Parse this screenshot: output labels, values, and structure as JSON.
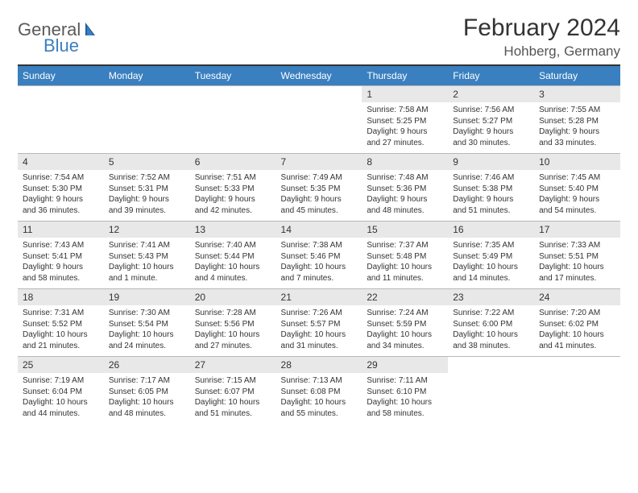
{
  "logo": {
    "word1": "General",
    "word2": "Blue",
    "icon_color": "#1f5f9f"
  },
  "title": "February 2024",
  "location": "Hohberg, Germany",
  "header_bg": "#3a7fbf",
  "daynum_bg": "#e8e8e8",
  "rule_color": "#333333",
  "weekdays": [
    "Sunday",
    "Monday",
    "Tuesday",
    "Wednesday",
    "Thursday",
    "Friday",
    "Saturday"
  ],
  "weeks": [
    [
      {
        "empty": true
      },
      {
        "empty": true
      },
      {
        "empty": true
      },
      {
        "empty": true
      },
      {
        "n": "1",
        "sr": "Sunrise: 7:58 AM",
        "ss": "Sunset: 5:25 PM",
        "d1": "Daylight: 9 hours",
        "d2": "and 27 minutes."
      },
      {
        "n": "2",
        "sr": "Sunrise: 7:56 AM",
        "ss": "Sunset: 5:27 PM",
        "d1": "Daylight: 9 hours",
        "d2": "and 30 minutes."
      },
      {
        "n": "3",
        "sr": "Sunrise: 7:55 AM",
        "ss": "Sunset: 5:28 PM",
        "d1": "Daylight: 9 hours",
        "d2": "and 33 minutes."
      }
    ],
    [
      {
        "n": "4",
        "sr": "Sunrise: 7:54 AM",
        "ss": "Sunset: 5:30 PM",
        "d1": "Daylight: 9 hours",
        "d2": "and 36 minutes."
      },
      {
        "n": "5",
        "sr": "Sunrise: 7:52 AM",
        "ss": "Sunset: 5:31 PM",
        "d1": "Daylight: 9 hours",
        "d2": "and 39 minutes."
      },
      {
        "n": "6",
        "sr": "Sunrise: 7:51 AM",
        "ss": "Sunset: 5:33 PM",
        "d1": "Daylight: 9 hours",
        "d2": "and 42 minutes."
      },
      {
        "n": "7",
        "sr": "Sunrise: 7:49 AM",
        "ss": "Sunset: 5:35 PM",
        "d1": "Daylight: 9 hours",
        "d2": "and 45 minutes."
      },
      {
        "n": "8",
        "sr": "Sunrise: 7:48 AM",
        "ss": "Sunset: 5:36 PM",
        "d1": "Daylight: 9 hours",
        "d2": "and 48 minutes."
      },
      {
        "n": "9",
        "sr": "Sunrise: 7:46 AM",
        "ss": "Sunset: 5:38 PM",
        "d1": "Daylight: 9 hours",
        "d2": "and 51 minutes."
      },
      {
        "n": "10",
        "sr": "Sunrise: 7:45 AM",
        "ss": "Sunset: 5:40 PM",
        "d1": "Daylight: 9 hours",
        "d2": "and 54 minutes."
      }
    ],
    [
      {
        "n": "11",
        "sr": "Sunrise: 7:43 AM",
        "ss": "Sunset: 5:41 PM",
        "d1": "Daylight: 9 hours",
        "d2": "and 58 minutes."
      },
      {
        "n": "12",
        "sr": "Sunrise: 7:41 AM",
        "ss": "Sunset: 5:43 PM",
        "d1": "Daylight: 10 hours",
        "d2": "and 1 minute."
      },
      {
        "n": "13",
        "sr": "Sunrise: 7:40 AM",
        "ss": "Sunset: 5:44 PM",
        "d1": "Daylight: 10 hours",
        "d2": "and 4 minutes."
      },
      {
        "n": "14",
        "sr": "Sunrise: 7:38 AM",
        "ss": "Sunset: 5:46 PM",
        "d1": "Daylight: 10 hours",
        "d2": "and 7 minutes."
      },
      {
        "n": "15",
        "sr": "Sunrise: 7:37 AM",
        "ss": "Sunset: 5:48 PM",
        "d1": "Daylight: 10 hours",
        "d2": "and 11 minutes."
      },
      {
        "n": "16",
        "sr": "Sunrise: 7:35 AM",
        "ss": "Sunset: 5:49 PM",
        "d1": "Daylight: 10 hours",
        "d2": "and 14 minutes."
      },
      {
        "n": "17",
        "sr": "Sunrise: 7:33 AM",
        "ss": "Sunset: 5:51 PM",
        "d1": "Daylight: 10 hours",
        "d2": "and 17 minutes."
      }
    ],
    [
      {
        "n": "18",
        "sr": "Sunrise: 7:31 AM",
        "ss": "Sunset: 5:52 PM",
        "d1": "Daylight: 10 hours",
        "d2": "and 21 minutes."
      },
      {
        "n": "19",
        "sr": "Sunrise: 7:30 AM",
        "ss": "Sunset: 5:54 PM",
        "d1": "Daylight: 10 hours",
        "d2": "and 24 minutes."
      },
      {
        "n": "20",
        "sr": "Sunrise: 7:28 AM",
        "ss": "Sunset: 5:56 PM",
        "d1": "Daylight: 10 hours",
        "d2": "and 27 minutes."
      },
      {
        "n": "21",
        "sr": "Sunrise: 7:26 AM",
        "ss": "Sunset: 5:57 PM",
        "d1": "Daylight: 10 hours",
        "d2": "and 31 minutes."
      },
      {
        "n": "22",
        "sr": "Sunrise: 7:24 AM",
        "ss": "Sunset: 5:59 PM",
        "d1": "Daylight: 10 hours",
        "d2": "and 34 minutes."
      },
      {
        "n": "23",
        "sr": "Sunrise: 7:22 AM",
        "ss": "Sunset: 6:00 PM",
        "d1": "Daylight: 10 hours",
        "d2": "and 38 minutes."
      },
      {
        "n": "24",
        "sr": "Sunrise: 7:20 AM",
        "ss": "Sunset: 6:02 PM",
        "d1": "Daylight: 10 hours",
        "d2": "and 41 minutes."
      }
    ],
    [
      {
        "n": "25",
        "sr": "Sunrise: 7:19 AM",
        "ss": "Sunset: 6:04 PM",
        "d1": "Daylight: 10 hours",
        "d2": "and 44 minutes."
      },
      {
        "n": "26",
        "sr": "Sunrise: 7:17 AM",
        "ss": "Sunset: 6:05 PM",
        "d1": "Daylight: 10 hours",
        "d2": "and 48 minutes."
      },
      {
        "n": "27",
        "sr": "Sunrise: 7:15 AM",
        "ss": "Sunset: 6:07 PM",
        "d1": "Daylight: 10 hours",
        "d2": "and 51 minutes."
      },
      {
        "n": "28",
        "sr": "Sunrise: 7:13 AM",
        "ss": "Sunset: 6:08 PM",
        "d1": "Daylight: 10 hours",
        "d2": "and 55 minutes."
      },
      {
        "n": "29",
        "sr": "Sunrise: 7:11 AM",
        "ss": "Sunset: 6:10 PM",
        "d1": "Daylight: 10 hours",
        "d2": "and 58 minutes."
      },
      {
        "empty": true
      },
      {
        "empty": true
      }
    ]
  ]
}
